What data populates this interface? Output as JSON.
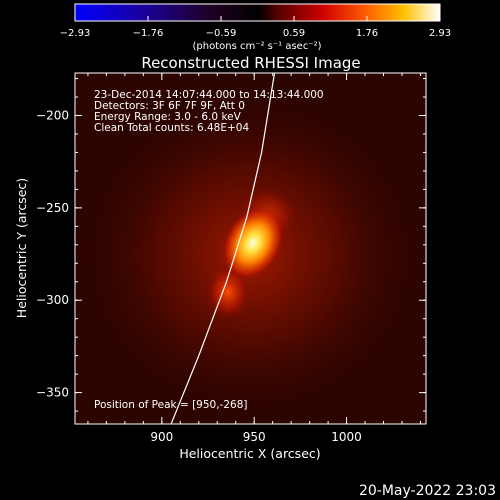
{
  "chart_data": {
    "type": "heatmap",
    "title": "Reconstructed RHESSI Image",
    "xlabel": "Heliocentric X (arcsec)",
    "ylabel": "Heliocentric Y (arcsec)",
    "xlim": [
      853,
      1043
    ],
    "ylim": [
      -367,
      -177
    ],
    "xticks": [
      900,
      950,
      1000
    ],
    "yticks": [
      -200,
      -250,
      -300,
      -350
    ],
    "colorbar": {
      "label": "(photons cm⁻² s⁻¹ asec⁻²)",
      "min": -2.93,
      "max": 2.93,
      "ticks": [
        "-2.93",
        "-1.76",
        "-0.59",
        "0.59",
        "1.76",
        "2.93"
      ],
      "colormap": "blue-purple-red-orange-yellow-white"
    },
    "annotations": [
      "23-Dec-2014 14:07:44.000 to 14:13:44.000",
      "Detectors: 3F 6F 7F 9F, Att 0",
      "Energy Range: 3.0 - 6.0 keV",
      "Clean    Total counts: 6.48E+04"
    ],
    "peak_label": "Position of Peak = [950,-268]",
    "peak": [
      950,
      -268
    ],
    "limb_curve": [
      [
        905,
        -367
      ],
      [
        920,
        -330
      ],
      [
        935,
        -290
      ],
      [
        946,
        -255
      ],
      [
        954,
        -220
      ],
      [
        961,
        -177
      ]
    ],
    "timestamp": "20-May-2022 23:03"
  }
}
